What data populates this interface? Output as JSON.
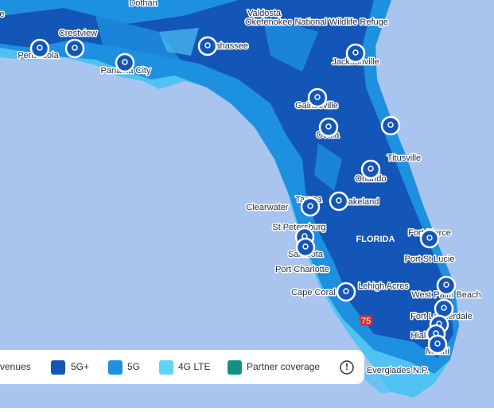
{
  "map": {
    "labels": [
      "ile",
      "Dothan",
      "Valdosta",
      "Okefenokee National Wildlife Refuge",
      "Crestview",
      "Pensacola",
      "Panama City",
      "Tallahassee",
      "Jacksonville",
      "Gainesville",
      "Ocala",
      "Titusville",
      "Orlando",
      "Clearwater",
      "Tampa",
      "Lakeland",
      "St Petersburg",
      "FLORIDA",
      "Fort Pierce",
      "Sarasota",
      "Port St Lucie",
      "Port Charlotte",
      "Lehigh Acres",
      "Cape Coral",
      "West Palm Beach",
      "Fort Lauderdale",
      "Hialeah",
      "Miami",
      "Everglades N.P.",
      "75"
    ]
  },
  "legend": {
    "items": [
      "venues",
      "5G+",
      "5G",
      "4G LTE",
      "Partner coverage"
    ],
    "info": "!"
  }
}
